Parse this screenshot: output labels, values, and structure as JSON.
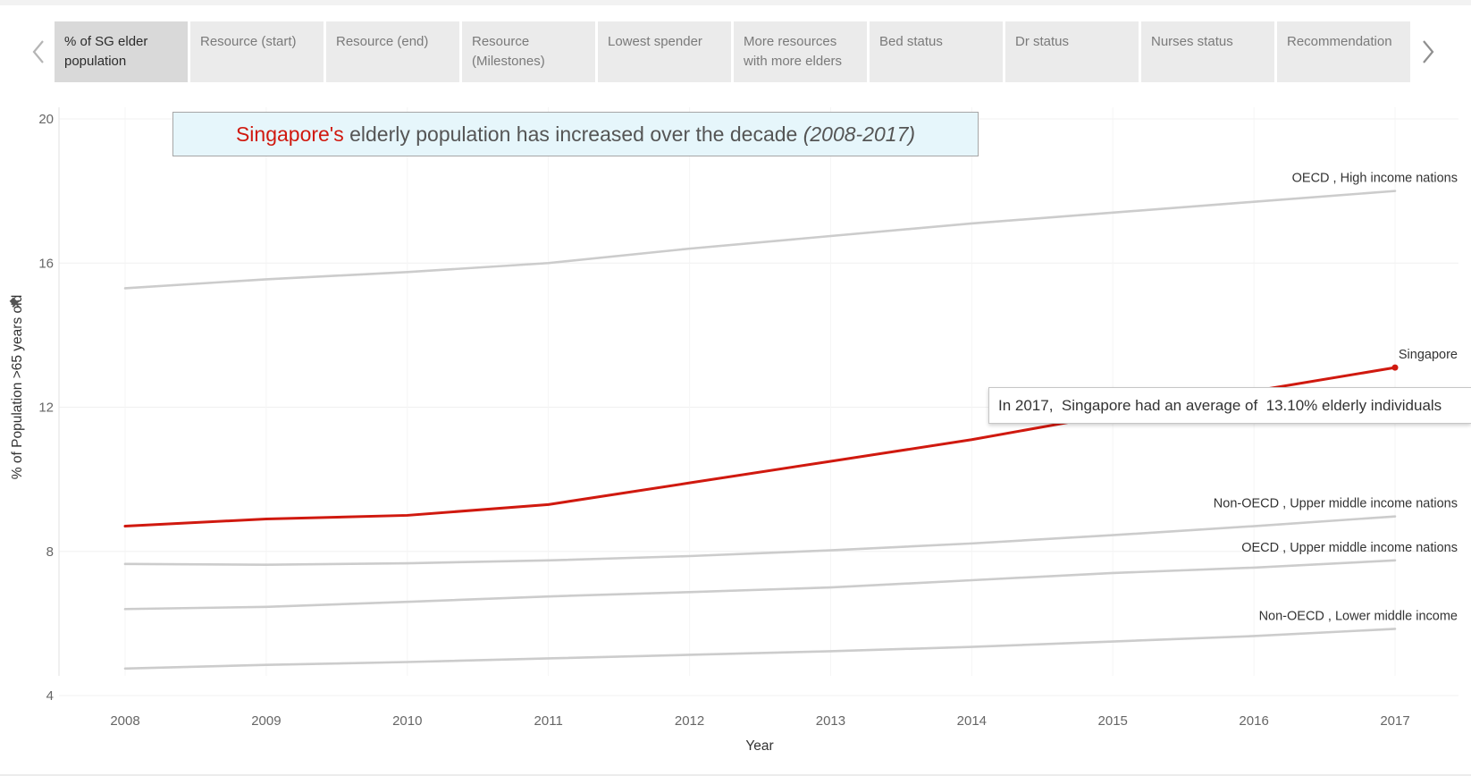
{
  "story": {
    "prev_icon": "chevron-left-icon",
    "next_icon": "chevron-right-icon",
    "tabs": [
      {
        "label": "% of SG elder population",
        "active": true
      },
      {
        "label": "Resource (start)",
        "active": false
      },
      {
        "label": "Resource (end)",
        "active": false
      },
      {
        "label": "Resource (Milestones)",
        "active": false
      },
      {
        "label": "Lowest spender",
        "active": false
      },
      {
        "label": "More resources with more elders",
        "active": false
      },
      {
        "label": "Bed status",
        "active": false
      },
      {
        "label": "Dr status",
        "active": false
      },
      {
        "label": "Nurses status",
        "active": false
      },
      {
        "label": "Recommendation",
        "active": false
      }
    ]
  },
  "title_box": {
    "highlight": "Singapore's",
    "main": " elderly population has increased over the decade ",
    "italic": "(2008-2017)",
    "background": "#e6f6fb",
    "highlight_color": "#d0190f"
  },
  "tooltip": {
    "text": "In 2017,  Singapore had an average of  13.10% elderly individuals"
  },
  "colors": {
    "highlight_series": "#d0190f",
    "other_series": "#cccccc",
    "axis_text": "#666666"
  },
  "chart_data": {
    "type": "line",
    "title": "Singapore's elderly population has increased over the decade (2008-2017)",
    "xlabel": "Year",
    "ylabel": "% of Population >65 years old",
    "ylabel_icon": "pin-icon",
    "x": [
      2008,
      2009,
      2010,
      2011,
      2012,
      2013,
      2014,
      2015,
      2016,
      2017
    ],
    "ylim": [
      4,
      20
    ],
    "yticks": [
      4,
      8,
      12,
      16,
      20
    ],
    "grid": true,
    "series": [
      {
        "name": "OECD , High income nations",
        "color": "#cccccc",
        "values": [
          15.3,
          15.55,
          15.75,
          16.0,
          16.4,
          16.75,
          17.1,
          17.4,
          17.7,
          18.0
        ]
      },
      {
        "name": "Singapore",
        "color": "#d0190f",
        "highlight": true,
        "values": [
          8.7,
          8.9,
          9.0,
          9.3,
          9.9,
          10.5,
          11.1,
          11.8,
          12.45,
          13.1
        ]
      },
      {
        "name": "Non-OECD , Upper middle income nations",
        "color": "#cccccc",
        "values": [
          7.65,
          7.63,
          7.67,
          7.75,
          7.87,
          8.03,
          8.22,
          8.45,
          8.7,
          8.97
        ]
      },
      {
        "name": "OECD , Upper middle income nations",
        "color": "#cccccc",
        "values": [
          6.4,
          6.46,
          6.6,
          6.75,
          6.87,
          7.0,
          7.2,
          7.4,
          7.55,
          7.75
        ]
      },
      {
        "name": "Non-OECD , Lower middle income",
        "color": "#cccccc",
        "values": [
          4.75,
          4.85,
          4.93,
          5.03,
          5.13,
          5.23,
          5.35,
          5.5,
          5.65,
          5.85
        ]
      }
    ]
  }
}
